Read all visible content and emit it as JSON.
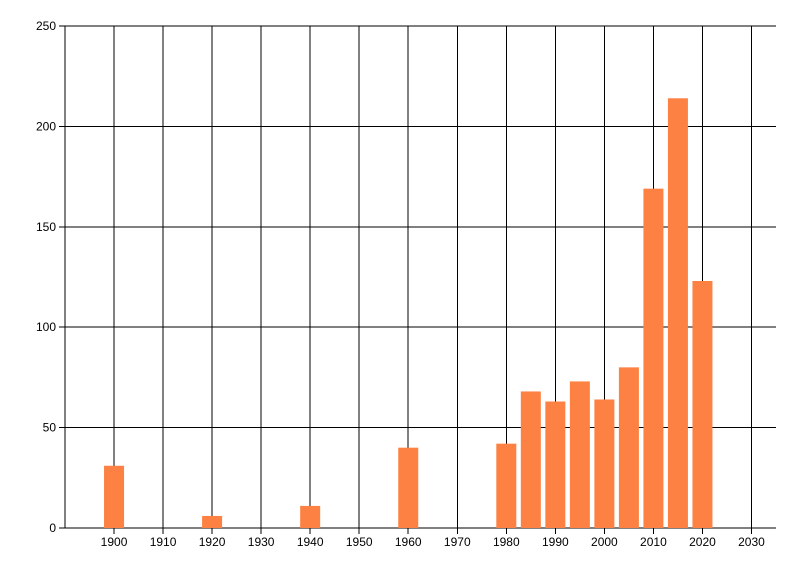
{
  "chart_data": {
    "type": "bar",
    "title": "",
    "xlabel": "",
    "ylabel": "",
    "grid": true,
    "legend": "none",
    "background_color": "#ffffff",
    "bar_color": "#FC8142",
    "grid_color": "#000000",
    "tick_label_color": "#000000",
    "x_range": [
      1890,
      2035
    ],
    "ylim": [
      0,
      250
    ],
    "x_gridline_years": [
      1890,
      1900,
      1910,
      1920,
      1930,
      1940,
      1950,
      1960,
      1970,
      1980,
      1990,
      2000,
      2010,
      2020,
      2030
    ],
    "x_tick_labels": [
      "1900",
      "1910",
      "1920",
      "1930",
      "1940",
      "1950",
      "1960",
      "1970",
      "1980",
      "1990",
      "2000",
      "2010",
      "2020",
      "2030"
    ],
    "x_tick_years": [
      1900,
      1910,
      1920,
      1930,
      1940,
      1950,
      1960,
      1970,
      1980,
      1990,
      2000,
      2010,
      2020,
      2030
    ],
    "y_tick_labels": [
      "0",
      "50",
      "100",
      "150",
      "200",
      "250"
    ],
    "y_tick_values": [
      0,
      50,
      100,
      150,
      200,
      250
    ],
    "bars": [
      {
        "year": 1900,
        "value": 31
      },
      {
        "year": 1920,
        "value": 6
      },
      {
        "year": 1940,
        "value": 11
      },
      {
        "year": 1960,
        "value": 40
      },
      {
        "year": 1980,
        "value": 42
      },
      {
        "year": 1985,
        "value": 68
      },
      {
        "year": 1990,
        "value": 63
      },
      {
        "year": 1995,
        "value": 73
      },
      {
        "year": 2000,
        "value": 64
      },
      {
        "year": 2005,
        "value": 80
      },
      {
        "year": 2010,
        "value": 169
      },
      {
        "year": 2015,
        "value": 214
      },
      {
        "year": 2020,
        "value": 123
      }
    ]
  }
}
